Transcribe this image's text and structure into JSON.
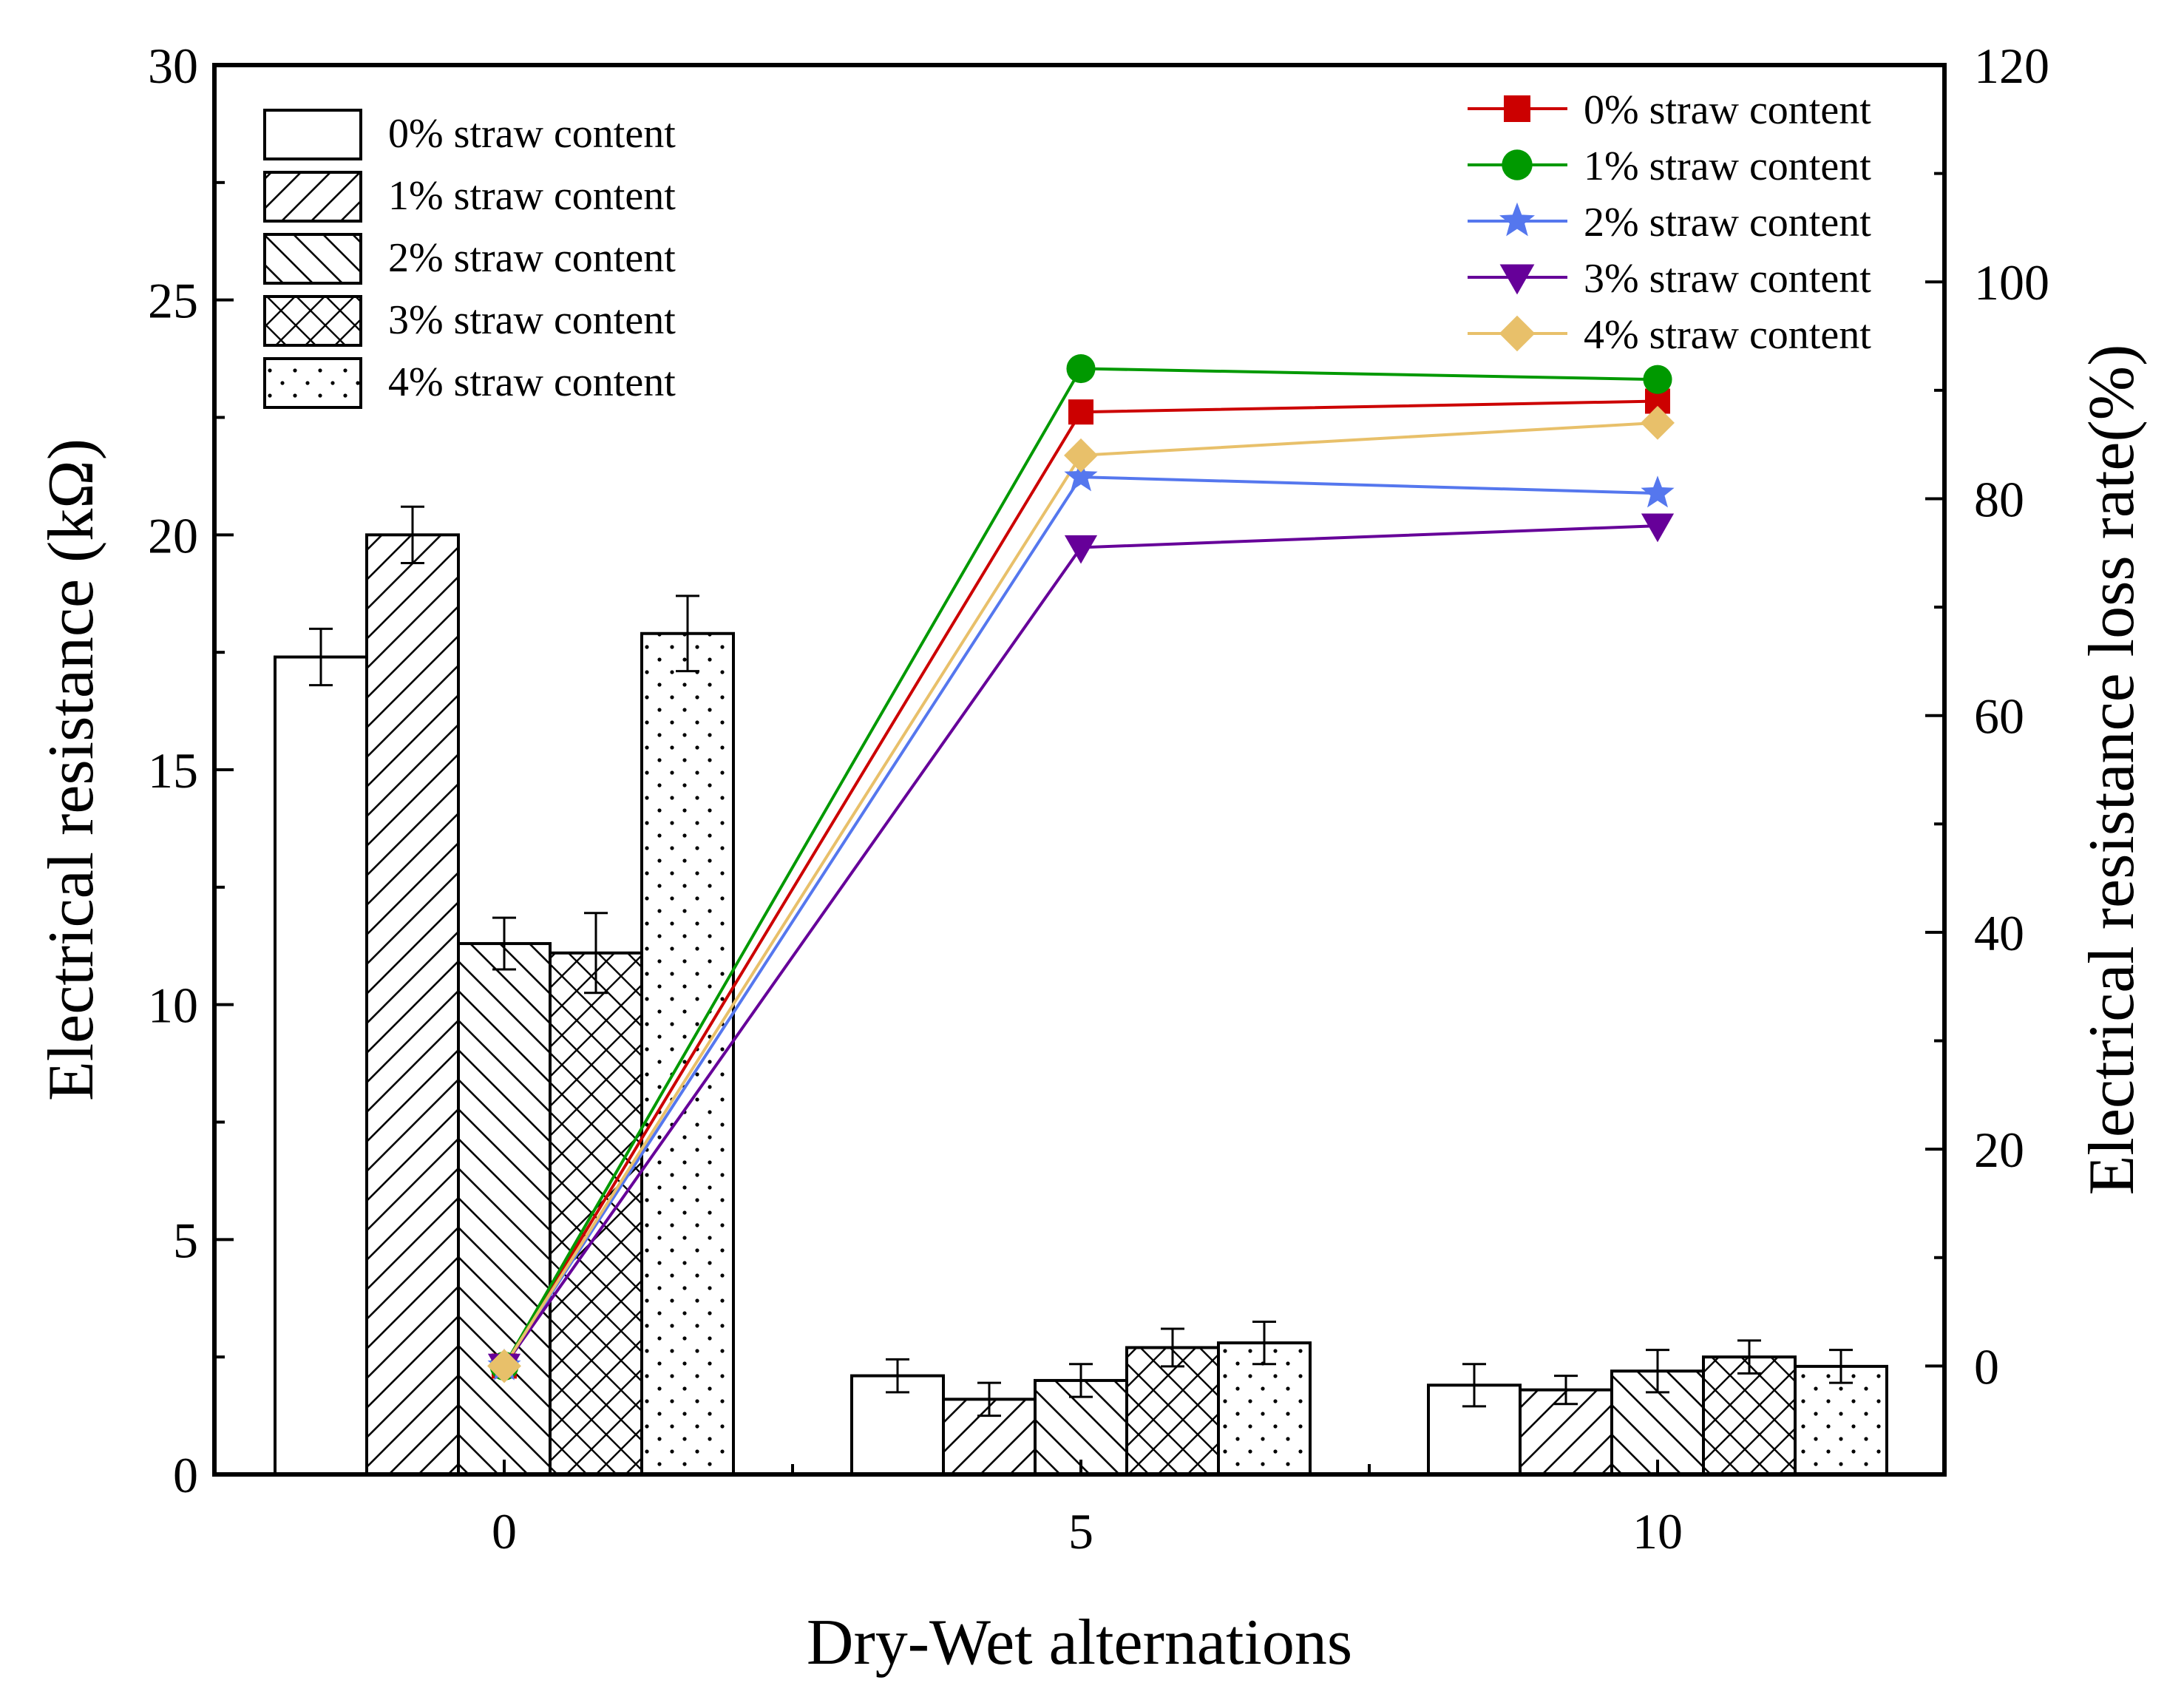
{
  "chart_data": {
    "type": "bar+line",
    "xlabel": "Dry-Wet alternations",
    "ylabel_left": "Electrical resistance (kΩ)",
    "ylabel_right": "Electrical resistance loss rate(%)",
    "categories": [
      "0",
      "5",
      "10"
    ],
    "ylim_left": [
      0,
      30
    ],
    "yticks_left": [
      "0",
      "5",
      "10",
      "15",
      "20",
      "25",
      "30"
    ],
    "ylim_right": [
      -10,
      120
    ],
    "yticks_right": [
      "0",
      "20",
      "40",
      "60",
      "80",
      "100",
      "120"
    ],
    "bar_series": [
      {
        "name": "0% straw content",
        "pattern": "none",
        "values": [
          17.4,
          2.1,
          1.9
        ],
        "errors": [
          0.6,
          0.35,
          0.45
        ]
      },
      {
        "name": "1% straw content",
        "pattern": "forward-hatch",
        "values": [
          20.0,
          1.6,
          1.8
        ],
        "errors": [
          0.6,
          0.35,
          0.3
        ]
      },
      {
        "name": "2% straw content",
        "pattern": "back-hatch",
        "values": [
          11.3,
          2.0,
          2.2
        ],
        "errors": [
          0.55,
          0.35,
          0.45
        ]
      },
      {
        "name": "3% straw content",
        "pattern": "cross-hatch",
        "values": [
          11.1,
          2.7,
          2.5
        ],
        "errors": [
          0.85,
          0.4,
          0.35
        ]
      },
      {
        "name": "4% straw content",
        "pattern": "dots",
        "values": [
          17.9,
          2.8,
          2.3
        ],
        "errors": [
          0.8,
          0.45,
          0.35
        ]
      }
    ],
    "line_series": [
      {
        "name": "0% straw content",
        "color": "#cc0000",
        "marker": "square",
        "values": [
          0,
          88,
          89
        ]
      },
      {
        "name": "1% straw content",
        "color": "#009900",
        "marker": "circle",
        "values": [
          0,
          92,
          91
        ]
      },
      {
        "name": "2% straw content",
        "color": "#5577ee",
        "marker": "star",
        "values": [
          0,
          82,
          80.5
        ]
      },
      {
        "name": "3% straw content",
        "color": "#660099",
        "marker": "triangle-down",
        "values": [
          0,
          75.5,
          77.5
        ]
      },
      {
        "name": "4% straw content",
        "color": "#e8c06a",
        "marker": "diamond",
        "values": [
          0,
          84,
          87
        ]
      }
    ]
  }
}
